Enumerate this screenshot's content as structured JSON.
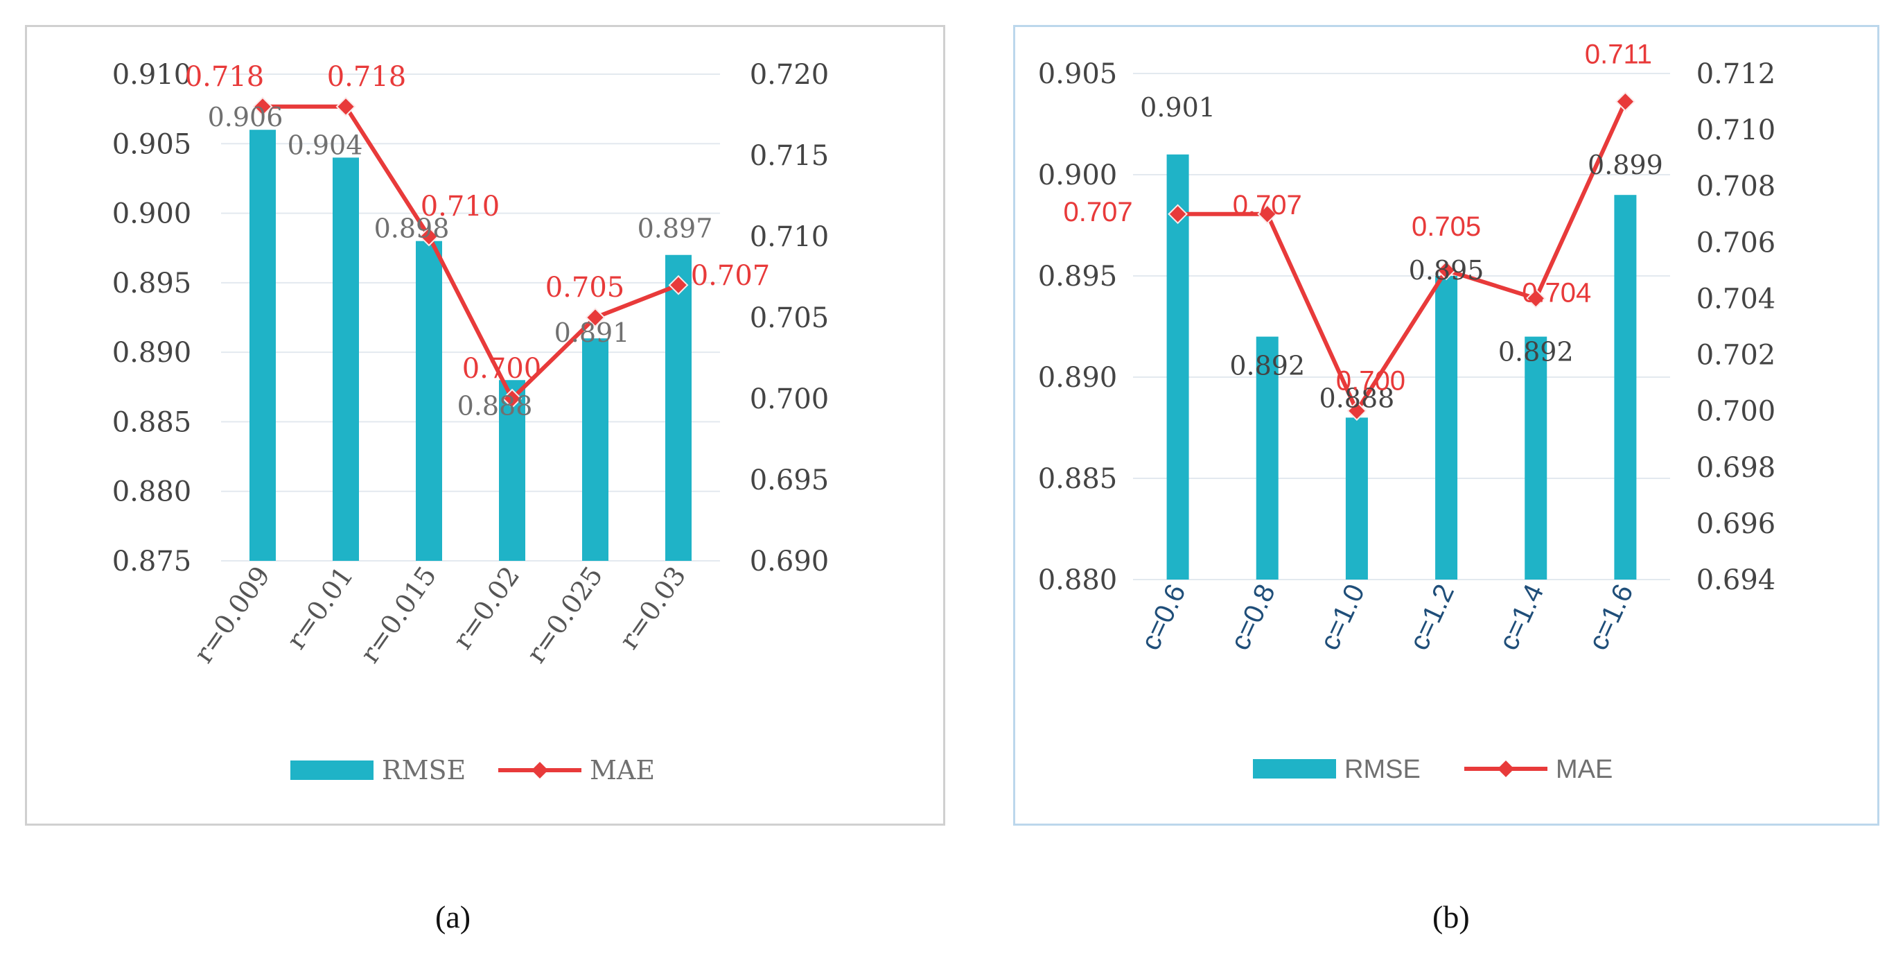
{
  "chart_data": [
    {
      "type": "bar",
      "panel": "a",
      "categories": [
        "r=0.009",
        "r=0.01",
        "r=0.015",
        "r=0.02",
        "r=0.025",
        "r=0.03"
      ],
      "series": [
        {
          "name": "RMSE",
          "axis": "left",
          "kind": "bar",
          "color": "#1fb3c7",
          "values": [
            0.906,
            0.904,
            0.898,
            0.888,
            0.891,
            0.897
          ],
          "labels": [
            "0.906",
            "0.904",
            "0.898",
            "0.888",
            "0.891",
            "0.897"
          ]
        },
        {
          "name": "MAE",
          "axis": "right",
          "kind": "line",
          "color": "#e83a3a",
          "values": [
            0.718,
            0.718,
            0.71,
            0.7,
            0.705,
            0.707
          ],
          "labels": [
            "0.718",
            "0.718",
            "0.710",
            "0.700",
            "0.705",
            "0.707"
          ]
        }
      ],
      "ylim_left": [
        0.875,
        0.91
      ],
      "yticks_left": [
        "0.875",
        "0.880",
        "0.885",
        "0.890",
        "0.895",
        "0.900",
        "0.905",
        "0.910"
      ],
      "ylim_right": [
        0.69,
        0.72
      ],
      "yticks_right": [
        "0.690",
        "0.695",
        "0.700",
        "0.705",
        "0.710",
        "0.715",
        "0.720"
      ],
      "legend": "bottom",
      "grid": true,
      "tick_color": "#555555",
      "title": "",
      "xlabel": "",
      "ylabel": ""
    },
    {
      "type": "bar",
      "panel": "b",
      "categories": [
        "c=0.6",
        "c=0.8",
        "c=1.0",
        "c=1.2",
        "c=1.4",
        "c=1.6"
      ],
      "series": [
        {
          "name": "RMSE",
          "axis": "left",
          "kind": "bar",
          "color": "#1fb3c7",
          "values": [
            0.901,
            0.892,
            0.888,
            0.895,
            0.892,
            0.899
          ],
          "labels": [
            "0.901",
            "0.892",
            "0.888",
            "0.895",
            "0.892",
            "0.899"
          ]
        },
        {
          "name": "MAE",
          "axis": "right",
          "kind": "line",
          "color": "#e83a3a",
          "values": [
            0.707,
            0.707,
            0.7,
            0.705,
            0.704,
            0.711
          ],
          "labels": [
            "0.707",
            "0.707",
            "0.700",
            "0.705",
            "0.704",
            "0.711"
          ]
        }
      ],
      "ylim_left": [
        0.88,
        0.905
      ],
      "yticks_left": [
        "0.880",
        "0.885",
        "0.890",
        "0.895",
        "0.900",
        "0.905"
      ],
      "ylim_right": [
        0.694,
        0.712
      ],
      "yticks_right": [
        "0.694",
        "0.696",
        "0.698",
        "0.700",
        "0.702",
        "0.704",
        "0.706",
        "0.708",
        "0.710",
        "0.712"
      ],
      "legend": "bottom",
      "grid": true,
      "tick_color": "#1f4e79",
      "title": "",
      "xlabel": "",
      "ylabel": ""
    }
  ],
  "captions": {
    "a": "(a)",
    "b": "(b)"
  }
}
